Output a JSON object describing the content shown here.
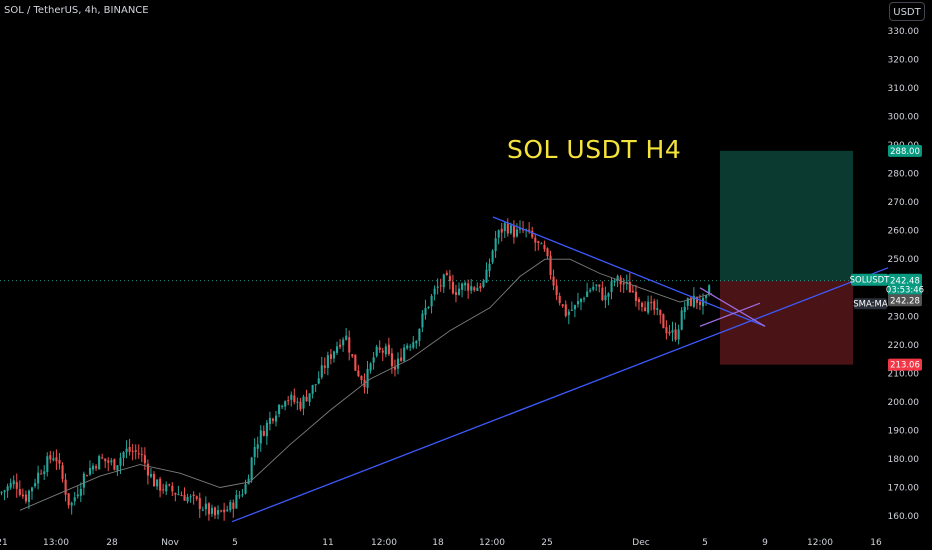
{
  "header": {
    "symbol_title": "SOL / TetherUS, 4h, BINANCE",
    "currency_button": "USDT"
  },
  "annotation": {
    "text": "SOL USDT H4",
    "color": "#f5e23a"
  },
  "colors": {
    "background": "#000000",
    "candle_up": "#26a69a",
    "candle_down": "#ef5350",
    "trendline": "#3d5afe",
    "trendline_alt": "#9c6ade",
    "sma": "#7c7c7c",
    "target_zone": "#0b3a30",
    "stop_zone": "#4a1416",
    "price_line": "#26a69a"
  },
  "chart_data": {
    "type": "candlestick",
    "symbol": "SOL / TetherUS",
    "interval": "4h",
    "exchange": "BINANCE",
    "ylim": [
      155,
      335
    ],
    "y_ticks": [
      160,
      170,
      180,
      190,
      200,
      210,
      220,
      230,
      240,
      250,
      260,
      270,
      280,
      290,
      300,
      310,
      320,
      330
    ],
    "x_tick_labels": [
      "21",
      "13:00",
      "28",
      "Nov",
      "5",
      "11",
      "12:00",
      "18",
      "12:00",
      "25",
      "Dec",
      "5",
      "9",
      "12:00",
      "16"
    ],
    "waypoints": [
      [
        0,
        168
      ],
      [
        15,
        172
      ],
      [
        25,
        166
      ],
      [
        40,
        176
      ],
      [
        55,
        182
      ],
      [
        63,
        172
      ],
      [
        70,
        163
      ],
      [
        85,
        175
      ],
      [
        100,
        180
      ],
      [
        115,
        178
      ],
      [
        125,
        183
      ],
      [
        140,
        182
      ],
      [
        155,
        171
      ],
      [
        170,
        169
      ],
      [
        185,
        167
      ],
      [
        200,
        164
      ],
      [
        215,
        160
      ],
      [
        230,
        163
      ],
      [
        245,
        170
      ],
      [
        255,
        185
      ],
      [
        270,
        194
      ],
      [
        285,
        202
      ],
      [
        300,
        199
      ],
      [
        315,
        206
      ],
      [
        325,
        213
      ],
      [
        335,
        219
      ],
      [
        345,
        224
      ],
      [
        355,
        212
      ],
      [
        365,
        207
      ],
      [
        375,
        217
      ],
      [
        385,
        218
      ],
      [
        395,
        211
      ],
      [
        405,
        220
      ],
      [
        415,
        222
      ],
      [
        425,
        232
      ],
      [
        435,
        239
      ],
      [
        445,
        243
      ],
      [
        455,
        239
      ],
      [
        465,
        241
      ],
      [
        475,
        240
      ],
      [
        485,
        242
      ],
      [
        495,
        257
      ],
      [
        505,
        262
      ],
      [
        515,
        259
      ],
      [
        525,
        260
      ],
      [
        535,
        256
      ],
      [
        545,
        252
      ],
      [
        555,
        240
      ],
      [
        565,
        231
      ],
      [
        575,
        233
      ],
      [
        585,
        238
      ],
      [
        595,
        241
      ],
      [
        605,
        236
      ],
      [
        615,
        243
      ],
      [
        625,
        241
      ],
      [
        635,
        238
      ],
      [
        645,
        234
      ],
      [
        655,
        232
      ],
      [
        665,
        226
      ],
      [
        675,
        223
      ],
      [
        685,
        234
      ],
      [
        695,
        236
      ],
      [
        705,
        234
      ],
      [
        712,
        242.5
      ]
    ],
    "sma_points": [
      [
        20,
        162
      ],
      [
        60,
        168
      ],
      [
        100,
        174
      ],
      [
        140,
        178
      ],
      [
        180,
        175
      ],
      [
        220,
        170
      ],
      [
        250,
        172
      ],
      [
        290,
        185
      ],
      [
        330,
        197
      ],
      [
        370,
        208
      ],
      [
        410,
        215
      ],
      [
        450,
        225
      ],
      [
        490,
        233
      ],
      [
        520,
        244
      ],
      [
        545,
        250
      ],
      [
        570,
        250
      ],
      [
        600,
        245
      ],
      [
        640,
        240
      ],
      [
        680,
        235
      ],
      [
        712,
        238
      ]
    ],
    "current_price": 242.48,
    "countdown": "03:53:46",
    "sma_value": 242.28,
    "sma_label": "SMA:MA",
    "symbol_label": "SOLUSDT",
    "take_profit": 288.0,
    "stop_loss": 213.06,
    "support_line": {
      "from": [
        232,
        158
      ],
      "to": [
        888,
        247
      ]
    },
    "resistance_line": {
      "from": [
        493,
        264.8
      ],
      "to": [
        765,
        226.5
      ]
    }
  }
}
